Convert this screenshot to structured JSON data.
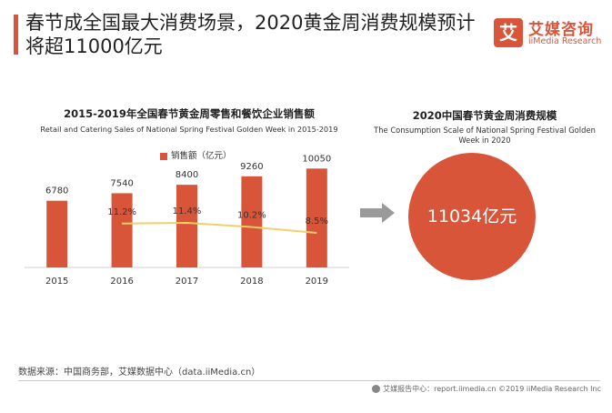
{
  "headline": "春节成全国最大消费场景，2020黄金周消费规模预计将超11000亿元",
  "logo": {
    "mark": "艾",
    "cn": "艾媒咨询",
    "en": "iiMedia Research"
  },
  "left_chart": {
    "title": "2015-2019年全国春节黄金周零售和餐饮企业销售额",
    "subtitle": "Retail and Catering Sales of  National Spring Festival Golden Week in 2015-2019",
    "legend": "销售额（亿元）"
  },
  "chart_data": [
    {
      "type": "bar",
      "title": "2015-2019年全国春节黄金周零售和餐饮企业销售额",
      "subtitle": "Retail and Catering Sales of  National Spring Festival Golden Week in 2015-2019",
      "categories": [
        "2015",
        "2016",
        "2017",
        "2018",
        "2019"
      ],
      "series": [
        {
          "name": "销售额（亿元）",
          "values": [
            6780,
            7540,
            8400,
            9260,
            10050
          ],
          "color": "#d9553a"
        }
      ],
      "line_series": {
        "values": [
          null,
          11.2,
          11.4,
          10.2,
          8.5
        ],
        "labels": [
          "",
          "11.2%",
          "11.4%",
          "10.2%",
          "8.5%"
        ],
        "color": "#f2d069"
      },
      "ylim": [
        0,
        11000
      ],
      "grid": false,
      "legend_position": "top-center"
    },
    {
      "type": "bar",
      "title": "2020中国春节黄金周消费规模",
      "subtitle": "The Consumption Scale of National Spring Festival Golden Week in 2020",
      "categories": [
        "2020"
      ],
      "values": [
        11034
      ],
      "value_label": "11034亿元",
      "color": "#d9553a"
    }
  ],
  "right_chart": {
    "title": "2020中国春节黄金周消费规模",
    "subtitle": "The Consumption Scale of National Spring Festival Golden Week in 2020",
    "value_label": "11034亿元"
  },
  "source": "数据来源：中国商务部，艾媒数据中心（data.iiMedia.cn）",
  "footer": "艾媒报告中心：report.iimedia.cn  ©2019  iiMedia Research  Inc"
}
